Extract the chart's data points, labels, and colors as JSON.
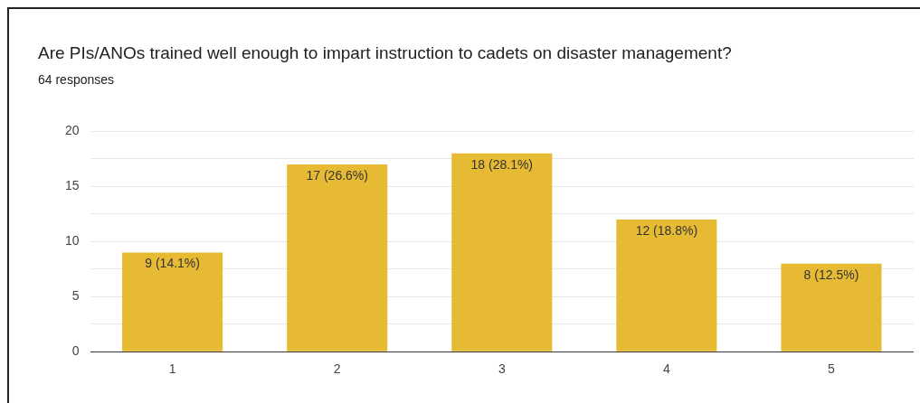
{
  "chart_data": {
    "type": "bar",
    "title": "Are PIs/ANOs trained well enough to impart instruction to cadets on disaster management?",
    "subtitle": "64 responses",
    "categories": [
      "1",
      "2",
      "3",
      "4",
      "5"
    ],
    "values": [
      9,
      17,
      18,
      12,
      8
    ],
    "value_labels": [
      "9 (14.1%)",
      "17 (26.6%)",
      "18 (28.1%)",
      "12 (18.8%)",
      "8 (12.5%)"
    ],
    "color": "#e6bb33",
    "ylim": [
      0,
      20
    ],
    "yticks": [
      0,
      {
        "value": 2.5,
        "label": null
      },
      5,
      {
        "value": 7.5,
        "label": null
      },
      10,
      {
        "value": 12.5,
        "label": null
      },
      15,
      {
        "value": 17.5,
        "label": null
      },
      20
    ],
    "grid": "y",
    "legend": false
  }
}
